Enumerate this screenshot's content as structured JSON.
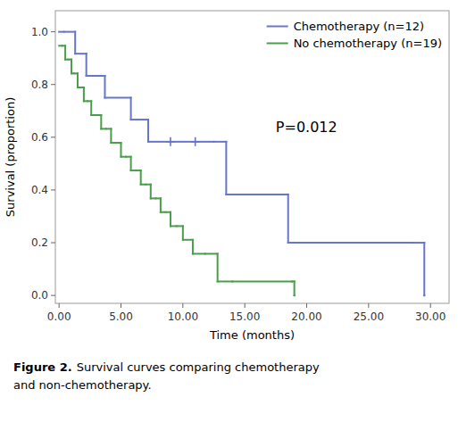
{
  "chart_data": {
    "type": "step",
    "xlabel": "Time (months)",
    "ylabel": "Survival (proportion)",
    "xlim": [
      -0.3,
      31.5
    ],
    "ylim": [
      -0.03,
      1.08
    ],
    "xticks": [
      {
        "value": 0.0,
        "label": "0.00"
      },
      {
        "value": 5.0,
        "label": "5.00"
      },
      {
        "value": 10.0,
        "label": "10.00"
      },
      {
        "value": 15.0,
        "label": "15.00"
      },
      {
        "value": 20.0,
        "label": "20.00"
      },
      {
        "value": 25.0,
        "label": "25.00"
      },
      {
        "value": 30.0,
        "label": "30.00"
      }
    ],
    "yticks": [
      {
        "value": 0.0,
        "label": "0.0"
      },
      0.2,
      0.4,
      0.6,
      0.8,
      {
        "value": 1.0,
        "label": "1.0"
      }
    ],
    "series": [
      {
        "name": "Chemotherapy (n=12)",
        "color": "#6676cc",
        "x": [
          0.0,
          0.4,
          1.3,
          2.2,
          3.7,
          5.8,
          7.2,
          9.0,
          11.0,
          12.5,
          13.5,
          18.5,
          28.5,
          29.5
        ],
        "values": [
          1.0,
          1.0,
          0.917,
          0.833,
          0.75,
          0.667,
          0.583,
          0.583,
          0.583,
          0.583,
          0.383,
          0.2,
          0.2,
          0.0
        ]
      },
      {
        "name": "No chemotherapy (n=19)",
        "color": "#4a9e4a",
        "x": [
          0.0,
          0.25,
          0.5,
          0.75,
          1.0,
          1.25,
          1.5,
          1.75,
          2.0,
          2.3,
          2.6,
          3.0,
          3.4,
          3.8,
          4.2,
          4.6,
          5.0,
          5.4,
          5.8,
          6.2,
          6.6,
          7.0,
          7.4,
          7.8,
          8.2,
          8.6,
          9.0,
          9.5,
          10.0,
          10.8,
          11.8,
          12.8,
          14.0,
          18.8,
          19.0
        ],
        "values": [
          0.947,
          0.947,
          0.895,
          0.895,
          0.842,
          0.842,
          0.789,
          0.789,
          0.737,
          0.737,
          0.684,
          0.684,
          0.632,
          0.632,
          0.579,
          0.579,
          0.526,
          0.526,
          0.474,
          0.474,
          0.421,
          0.421,
          0.368,
          0.368,
          0.316,
          0.316,
          0.263,
          0.263,
          0.211,
          0.158,
          0.158,
          0.053,
          0.053,
          0.053,
          0.0
        ]
      },
      {
        "type": "scatter",
        "marker": "plus",
        "color": "#6676cc",
        "x": [
          9.0,
          11.0
        ],
        "values": [
          0.583,
          0.583
        ]
      }
    ],
    "annotations": [
      {
        "text": "P=0.012",
        "x": 17.5,
        "y": 0.62
      }
    ],
    "legend": "upper right",
    "grid": false,
    "caption": {
      "label": "Figure 2.",
      "lines": [
        "Survival curves comparing chemotherapy",
        "and non-chemotherapy."
      ]
    }
  }
}
